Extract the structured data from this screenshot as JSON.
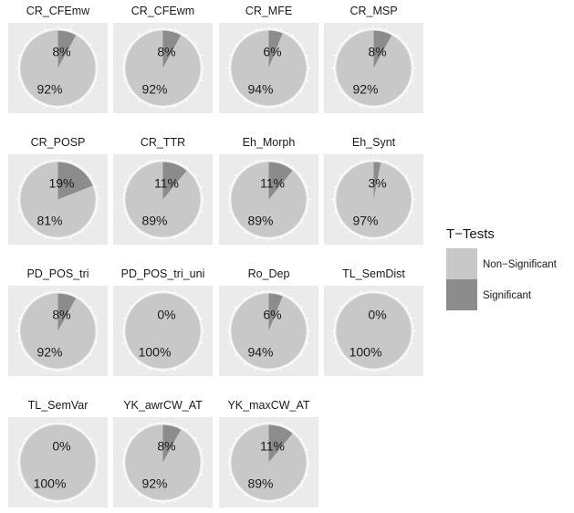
{
  "chart_data": {
    "type": "pie",
    "categories": [
      "Non-Significant",
      "Significant"
    ],
    "colors": {
      "Non-Significant": "#c8c8c8",
      "Significant": "#8c8c8c",
      "panel": "#ebebeb"
    },
    "legend": {
      "title": "T−Tests",
      "entries": [
        "Non−Significant",
        "Significant"
      ],
      "position": "right"
    },
    "facets": [
      {
        "name": "CR_CFEmw",
        "significant": 8,
        "non_significant": 92,
        "sig_label": "8%",
        "non_label": "92%"
      },
      {
        "name": "CR_CFEwm",
        "significant": 8,
        "non_significant": 92,
        "sig_label": "8%",
        "non_label": "92%"
      },
      {
        "name": "CR_MFE",
        "significant": 6,
        "non_significant": 94,
        "sig_label": "6%",
        "non_label": "94%"
      },
      {
        "name": "CR_MSP",
        "significant": 8,
        "non_significant": 92,
        "sig_label": "8%",
        "non_label": "92%"
      },
      {
        "name": "CR_POSP",
        "significant": 19,
        "non_significant": 81,
        "sig_label": "19%",
        "non_label": "81%"
      },
      {
        "name": "CR_TTR",
        "significant": 11,
        "non_significant": 89,
        "sig_label": "11%",
        "non_label": "89%"
      },
      {
        "name": "Eh_Morph",
        "significant": 11,
        "non_significant": 89,
        "sig_label": "11%",
        "non_label": "89%"
      },
      {
        "name": "Eh_Synt",
        "significant": 3,
        "non_significant": 97,
        "sig_label": "3%",
        "non_label": "97%"
      },
      {
        "name": "PD_POS_tri",
        "significant": 8,
        "non_significant": 92,
        "sig_label": "8%",
        "non_label": "92%"
      },
      {
        "name": "PD_POS_tri_uni",
        "significant": 0,
        "non_significant": 100,
        "sig_label": "0%",
        "non_label": "100%"
      },
      {
        "name": "Ro_Dep",
        "significant": 6,
        "non_significant": 94,
        "sig_label": "6%",
        "non_label": "94%"
      },
      {
        "name": "TL_SemDist",
        "significant": 0,
        "non_significant": 100,
        "sig_label": "0%",
        "non_label": "100%"
      },
      {
        "name": "TL_SemVar",
        "significant": 0,
        "non_significant": 100,
        "sig_label": "0%",
        "non_label": "100%"
      },
      {
        "name": "YK_awrCW_AT",
        "significant": 8,
        "non_significant": 92,
        "sig_label": "8%",
        "non_label": "92%"
      },
      {
        "name": "YK_maxCW_AT",
        "significant": 11,
        "non_significant": 89,
        "sig_label": "11%",
        "non_label": "89%"
      }
    ]
  }
}
